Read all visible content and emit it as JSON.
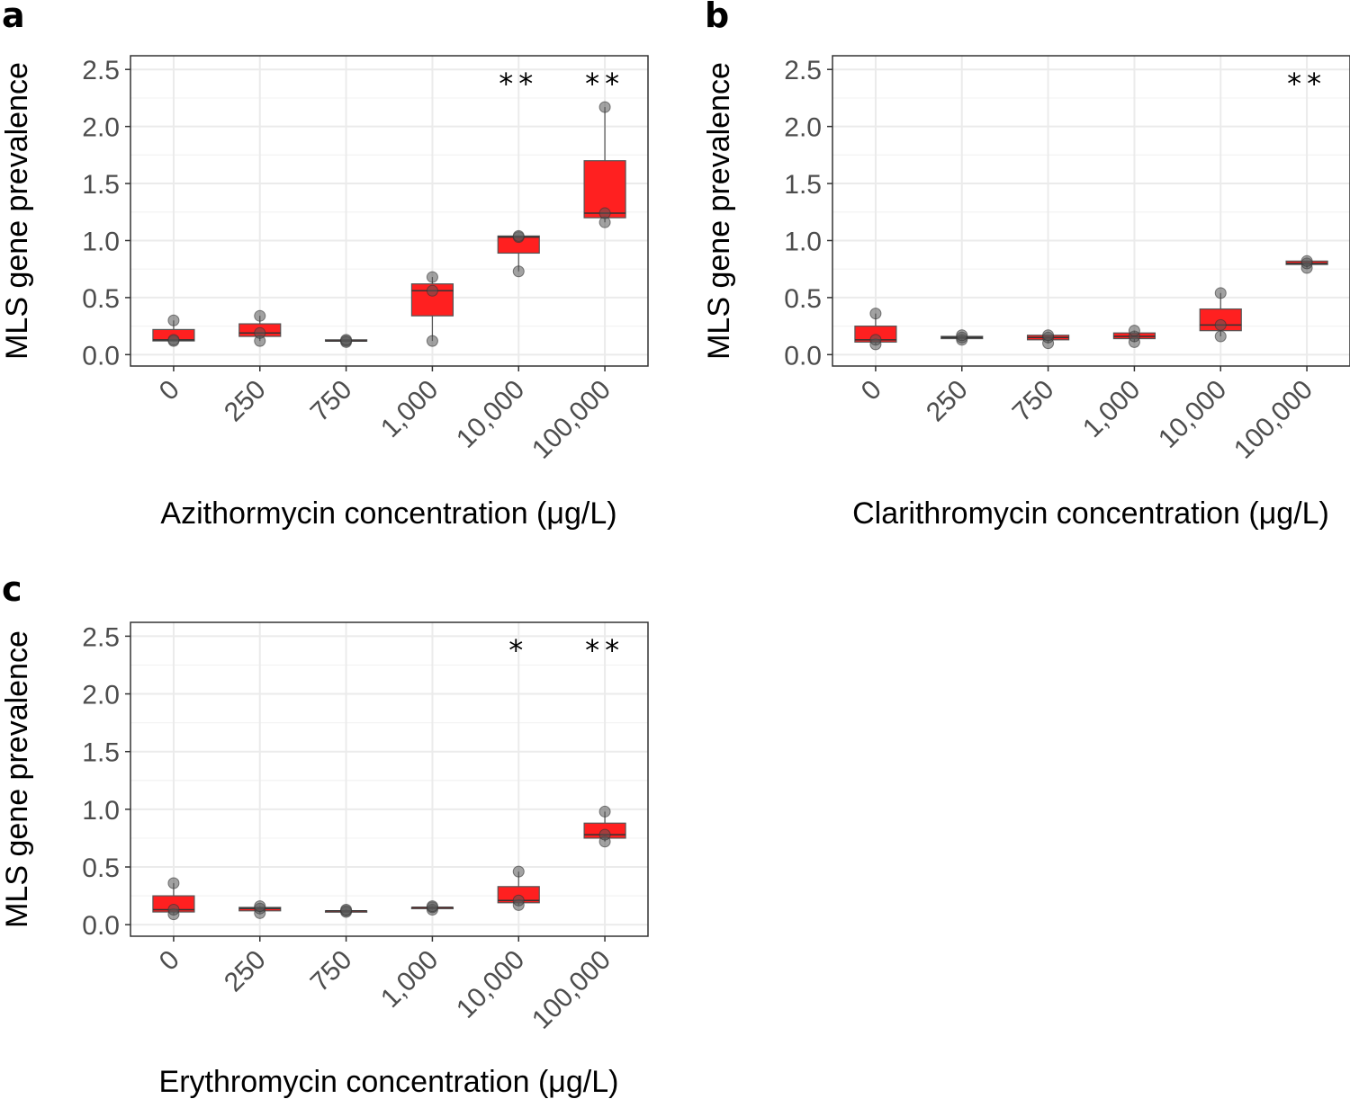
{
  "colors": {
    "box_fill": "#ff2020",
    "box_stroke": "#555555",
    "point": "#555555",
    "grid_major": "#ebebeb",
    "grid_minor": "#f3f3f3",
    "panel_border": "#333333"
  },
  "chart_data": [
    {
      "type": "box",
      "panel_label": "a",
      "xlabel": "Azithormycin concentration (μg/L)",
      "ylabel": "MLS gene prevalence",
      "categories": [
        "0",
        "250",
        "750",
        "1,000",
        "10,000",
        "100,000"
      ],
      "yticks": [
        "0.0",
        "0.5",
        "1.0",
        "1.5",
        "2.0",
        "2.5"
      ],
      "ylim": [
        -0.1,
        2.62
      ],
      "boxes": [
        {
          "min": 0.12,
          "q1": 0.12,
          "median": 0.13,
          "q3": 0.22,
          "max": 0.3
        },
        {
          "min": 0.12,
          "q1": 0.16,
          "median": 0.19,
          "q3": 0.27,
          "max": 0.34
        },
        {
          "min": 0.11,
          "q1": 0.12,
          "median": 0.12,
          "q3": 0.13,
          "max": 0.13
        },
        {
          "min": 0.12,
          "q1": 0.34,
          "median": 0.56,
          "q3": 0.62,
          "max": 0.68
        },
        {
          "min": 0.73,
          "q1": 0.89,
          "median": 1.03,
          "q3": 1.04,
          "max": 1.04
        },
        {
          "min": 1.16,
          "q1": 1.2,
          "median": 1.24,
          "q3": 1.7,
          "max": 2.17
        }
      ],
      "points": [
        [
          0.12,
          0.13,
          0.3
        ],
        [
          0.12,
          0.19,
          0.34
        ],
        [
          0.11,
          0.12,
          0.13
        ],
        [
          0.12,
          0.56,
          0.68
        ],
        [
          0.73,
          1.03,
          1.04
        ],
        [
          1.16,
          1.24,
          2.17
        ]
      ],
      "significance": [
        "",
        "",
        "",
        "",
        "**",
        "**"
      ]
    },
    {
      "type": "box",
      "panel_label": "b",
      "xlabel": "Clarithromycin concentration (μg/L)",
      "ylabel": "MLS gene prevalence",
      "categories": [
        "0",
        "250",
        "750",
        "1,000",
        "10,000",
        "100,000"
      ],
      "yticks": [
        "0.0",
        "0.5",
        "1.0",
        "1.5",
        "2.0",
        "2.5"
      ],
      "ylim": [
        -0.1,
        2.62
      ],
      "boxes": [
        {
          "min": 0.09,
          "q1": 0.11,
          "median": 0.13,
          "q3": 0.25,
          "max": 0.36
        },
        {
          "min": 0.13,
          "q1": 0.14,
          "median": 0.15,
          "q3": 0.16,
          "max": 0.17
        },
        {
          "min": 0.1,
          "q1": 0.13,
          "median": 0.15,
          "q3": 0.17,
          "max": 0.17
        },
        {
          "min": 0.11,
          "q1": 0.14,
          "median": 0.16,
          "q3": 0.19,
          "max": 0.21
        },
        {
          "min": 0.16,
          "q1": 0.21,
          "median": 0.26,
          "q3": 0.4,
          "max": 0.54
        },
        {
          "min": 0.76,
          "q1": 0.79,
          "median": 0.8,
          "q3": 0.82,
          "max": 0.82
        }
      ],
      "points": [
        [
          0.09,
          0.13,
          0.36
        ],
        [
          0.13,
          0.15,
          0.17
        ],
        [
          0.1,
          0.15,
          0.17
        ],
        [
          0.11,
          0.16,
          0.21
        ],
        [
          0.16,
          0.26,
          0.54
        ],
        [
          0.76,
          0.8,
          0.82
        ]
      ],
      "significance": [
        "",
        "",
        "",
        "",
        "",
        "**"
      ]
    },
    {
      "type": "box",
      "panel_label": "c",
      "xlabel": "Erythromycin concentration (μg/L)",
      "ylabel": "MLS gene prevalence",
      "categories": [
        "0",
        "250",
        "750",
        "1,000",
        "10,000",
        "100,000"
      ],
      "yticks": [
        "0.0",
        "0.5",
        "1.0",
        "1.5",
        "2.0",
        "2.5"
      ],
      "ylim": [
        -0.1,
        2.62
      ],
      "boxes": [
        {
          "min": 0.09,
          "q1": 0.11,
          "median": 0.13,
          "q3": 0.25,
          "max": 0.36
        },
        {
          "min": 0.1,
          "q1": 0.12,
          "median": 0.14,
          "q3": 0.15,
          "max": 0.16
        },
        {
          "min": 0.11,
          "q1": 0.11,
          "median": 0.12,
          "q3": 0.12,
          "max": 0.13
        },
        {
          "min": 0.13,
          "q1": 0.14,
          "median": 0.15,
          "q3": 0.15,
          "max": 0.16
        },
        {
          "min": 0.17,
          "q1": 0.19,
          "median": 0.21,
          "q3": 0.33,
          "max": 0.46
        },
        {
          "min": 0.72,
          "q1": 0.75,
          "median": 0.78,
          "q3": 0.88,
          "max": 0.98
        }
      ],
      "points": [
        [
          0.09,
          0.13,
          0.36
        ],
        [
          0.1,
          0.14,
          0.16
        ],
        [
          0.11,
          0.12,
          0.13
        ],
        [
          0.13,
          0.15,
          0.16
        ],
        [
          0.17,
          0.21,
          0.46
        ],
        [
          0.72,
          0.78,
          0.98
        ]
      ],
      "significance": [
        "",
        "",
        "",
        "",
        "*",
        "**"
      ]
    }
  ]
}
